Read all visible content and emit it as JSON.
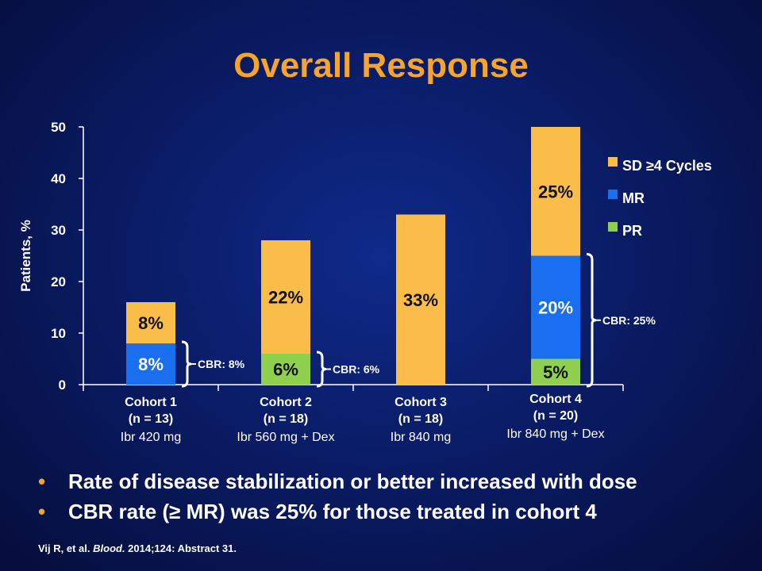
{
  "slide": {
    "title": "Overall Response",
    "bullets": [
      "Rate of disease stabilization or better increased with dose",
      "CBR rate (≥ MR) was 25% for those treated in cohort 4"
    ],
    "citation_prefix": "Vij R, et al. ",
    "citation_journal": "Blood.",
    "citation_suffix": " 2014;124: Abstract 31.",
    "bullet_glyph": "•"
  },
  "chart_data": {
    "type": "bar",
    "stacked": true,
    "ylabel": "Patients, %",
    "ylim": [
      0,
      50
    ],
    "yticks": [
      0,
      10,
      20,
      30,
      40,
      50
    ],
    "categories": [
      {
        "lines": [
          "Cohort 1",
          "(n = 13)"
        ],
        "dose": "Ibr 420 mg"
      },
      {
        "lines": [
          "Cohort 2",
          "(n = 18)"
        ],
        "dose": "Ibr 560 mg + Dex"
      },
      {
        "lines": [
          "Cohort 3",
          "(n = 18)"
        ],
        "dose": "Ibr 840 mg"
      },
      {
        "lines": [
          "Cohort 4",
          "(n = 20)"
        ],
        "dose": "Ibr 840 mg + Dex"
      }
    ],
    "series": [
      {
        "name": "PR",
        "color": "#8fd14f",
        "values": [
          0,
          6,
          0,
          5
        ],
        "labels": [
          "",
          "6%",
          "",
          "5%"
        ]
      },
      {
        "name": "MR",
        "color": "#1a6ef0",
        "values": [
          8,
          0,
          0,
          20
        ],
        "labels": [
          "8%",
          "",
          "",
          "20%"
        ]
      },
      {
        "name": "SD ≥4 Cycles",
        "color": "#fbbd4a",
        "values": [
          8,
          22,
          33,
          25
        ],
        "labels": [
          "8%",
          "22%",
          "33%",
          "25%"
        ]
      }
    ],
    "legend_order": [
      "SD ≥4 Cycles",
      "MR",
      "PR"
    ],
    "legend_position": "right",
    "annotations": [
      {
        "cohort": 0,
        "from": 0,
        "to": 8,
        "text": "CBR: 8%"
      },
      {
        "cohort": 1,
        "from": 0,
        "to": 6,
        "text": "CBR: 6%"
      },
      {
        "cohort": 3,
        "from": 0,
        "to": 25,
        "text": "CBR: 25%"
      }
    ],
    "grid": false
  }
}
